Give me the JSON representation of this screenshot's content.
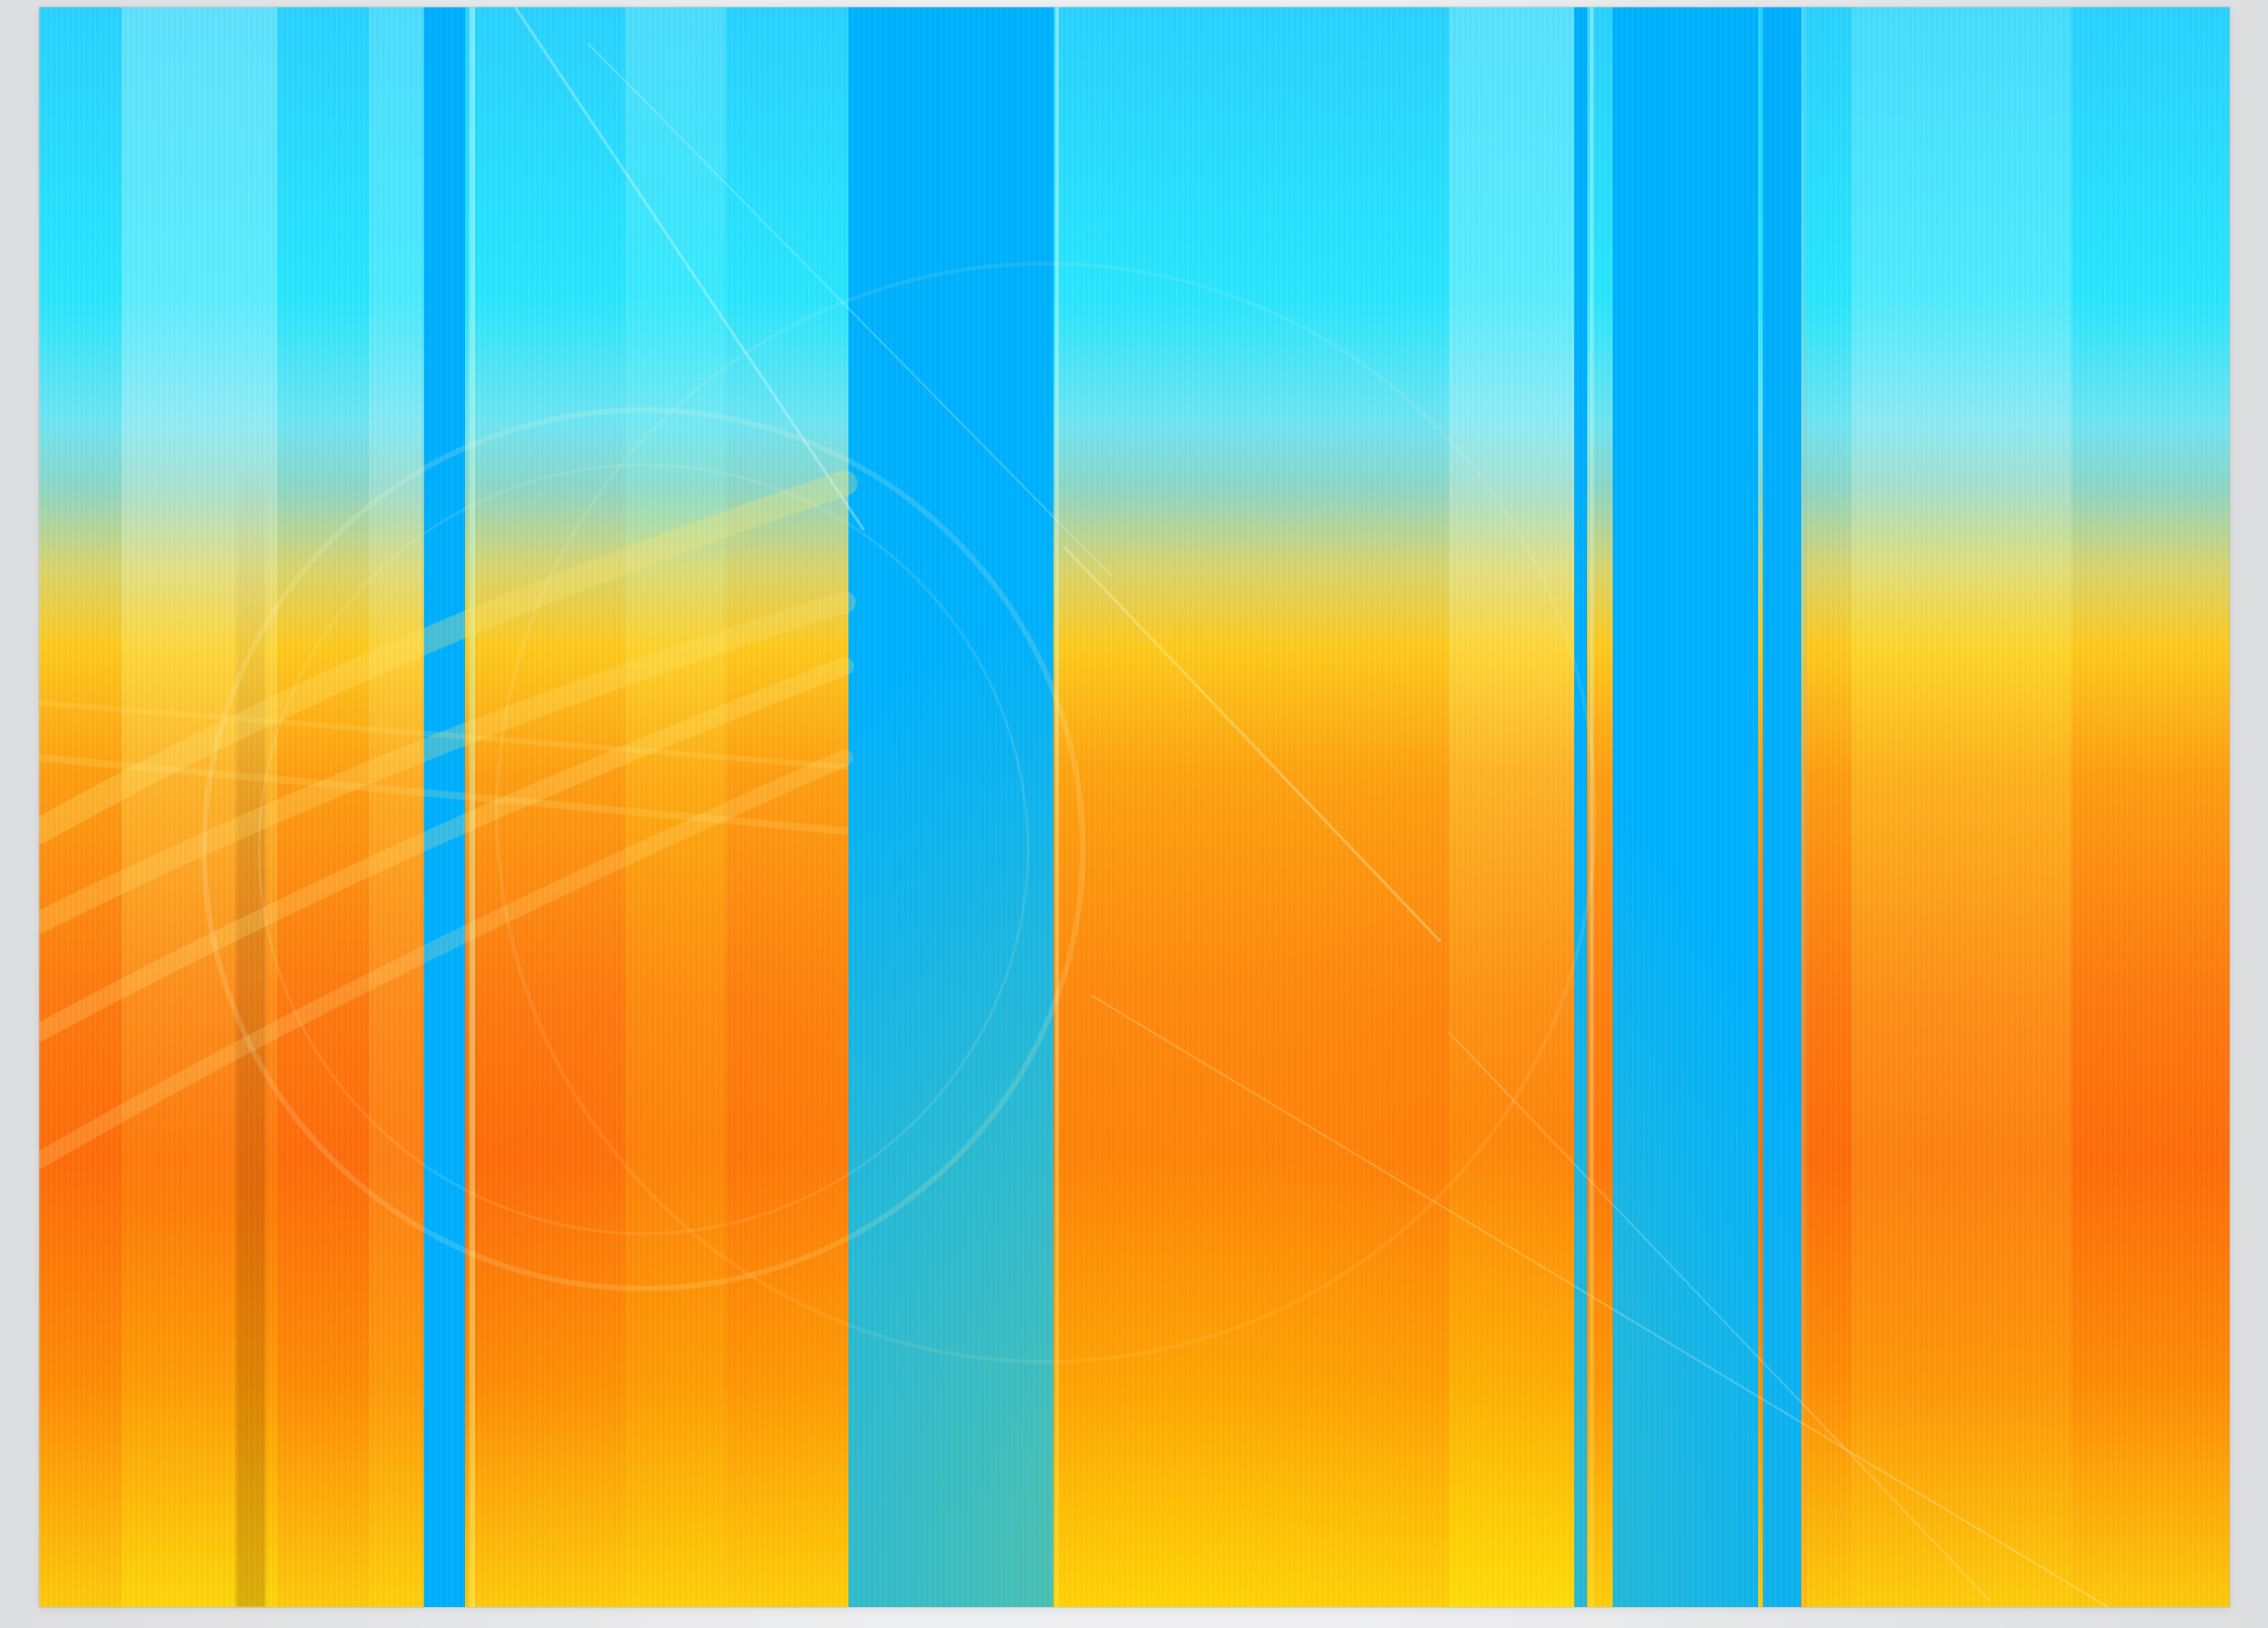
{
  "image": {
    "subject": "abstract-vertical-stripes",
    "colors": {
      "cyan": "#29e7ff",
      "sky_blue": "#00b2ff",
      "yellow": "#ffd21a",
      "orange": "#ff7a10",
      "deep_orange": "#ff5a00"
    }
  }
}
